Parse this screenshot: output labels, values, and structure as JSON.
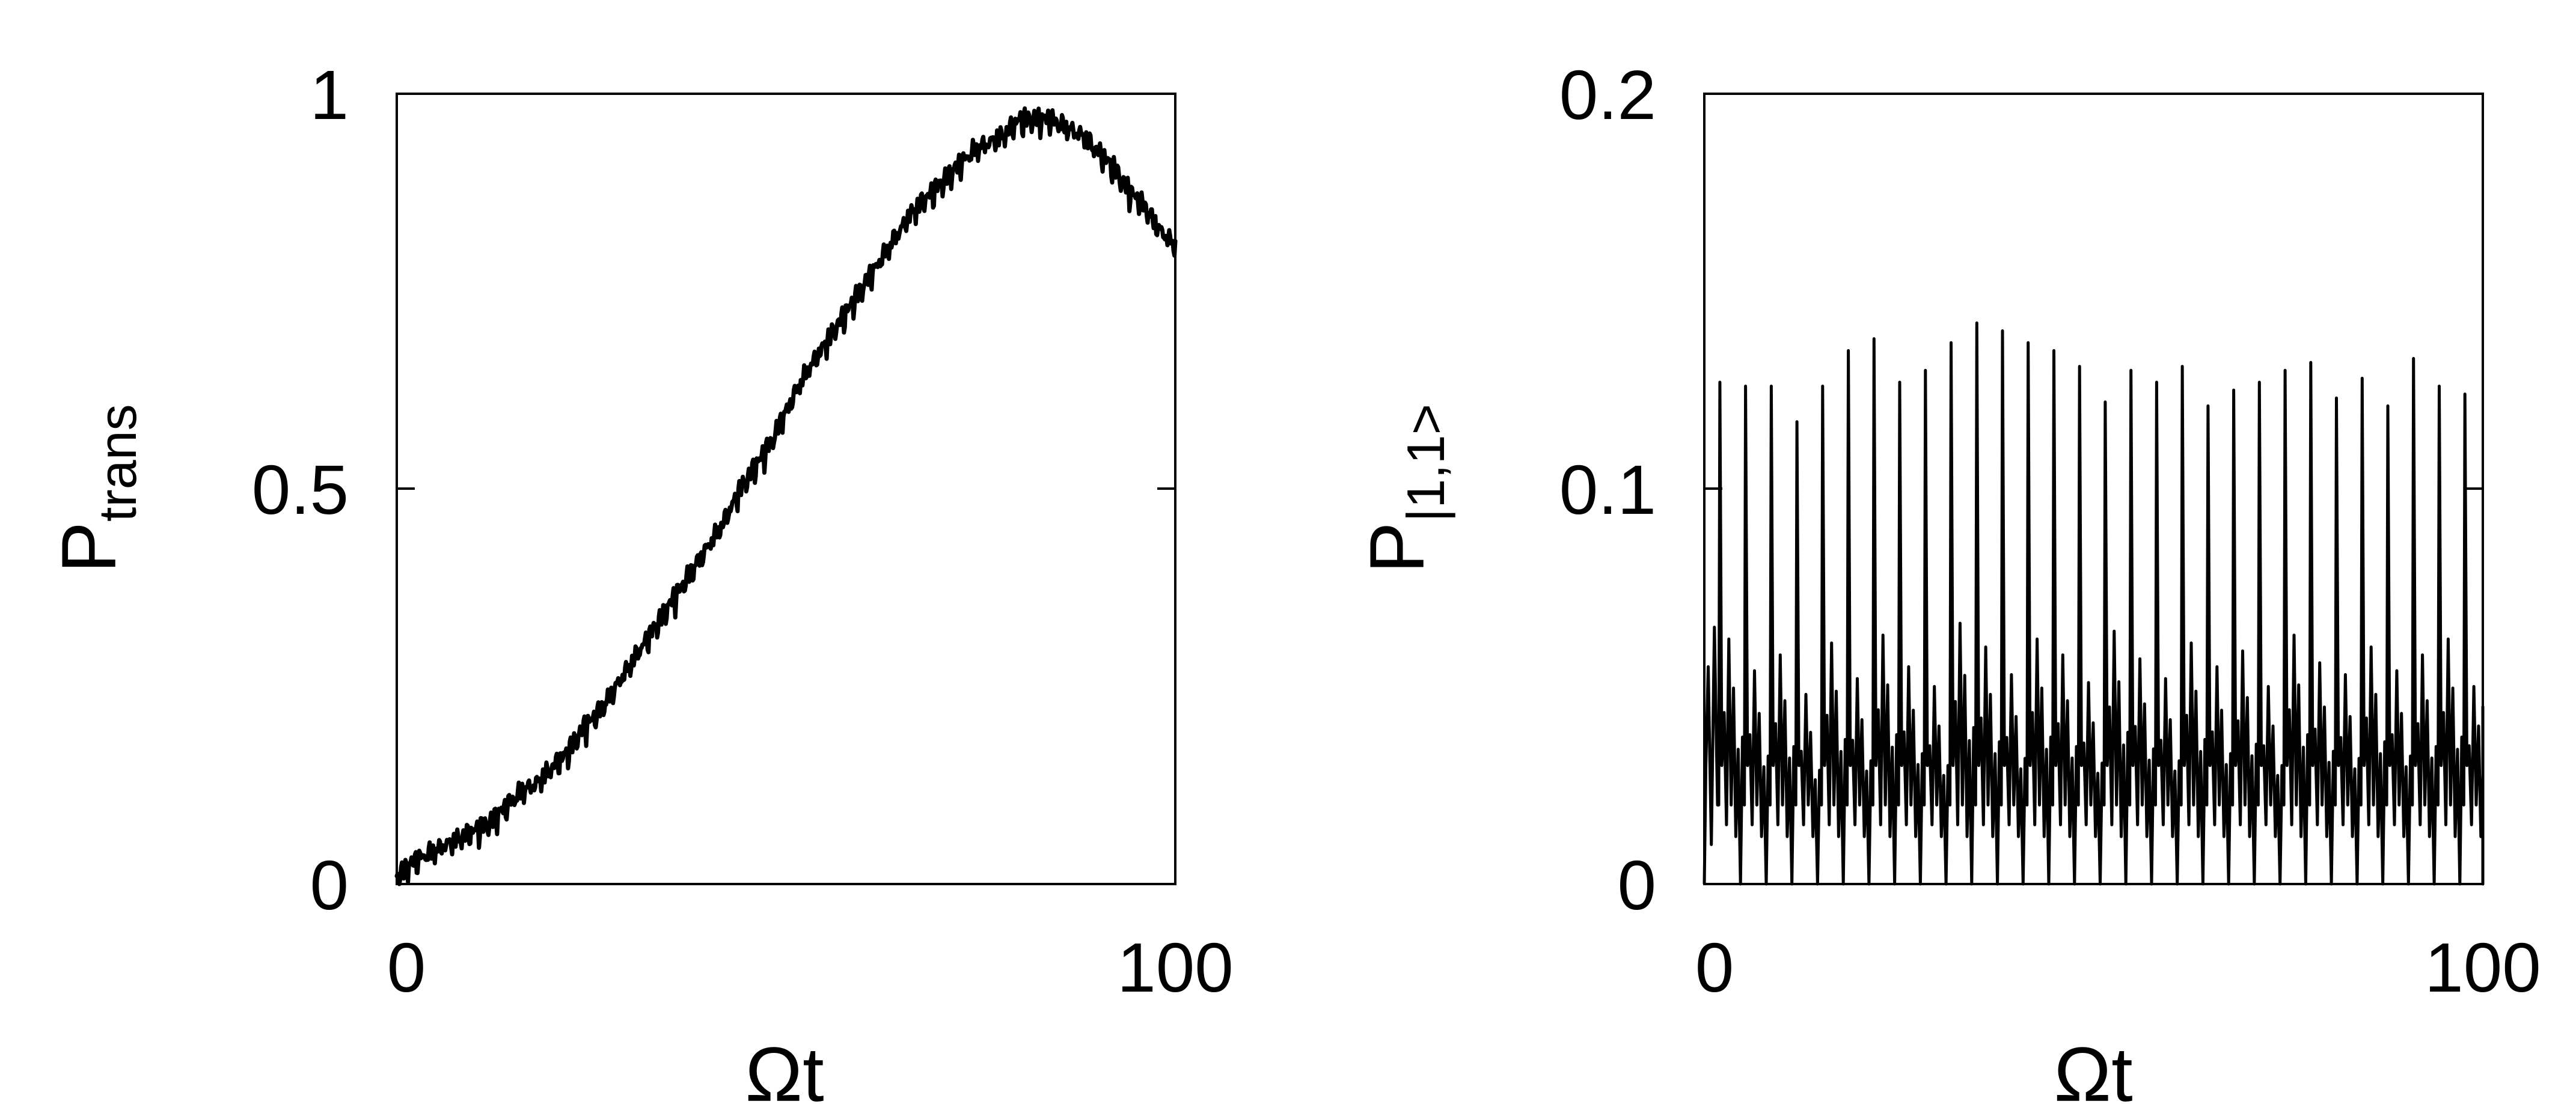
{
  "chart_data": [
    {
      "type": "line",
      "title": "",
      "xlabel": "Ωt",
      "ylabel": {
        "main": "P",
        "subscript": "trans"
      },
      "xlim": [
        0,
        100
      ],
      "ylim": [
        0,
        1
      ],
      "x_ticks": [
        {
          "value": 0,
          "label": "0"
        },
        {
          "value": 100,
          "label": "100"
        }
      ],
      "y_ticks": [
        {
          "value": 0,
          "label": "0"
        },
        {
          "value": 0.5,
          "label": "0.5"
        },
        {
          "value": 1,
          "label": "1"
        }
      ],
      "grid": false,
      "legend": "none",
      "line_color": "#000000",
      "series": [
        {
          "x": [
            0,
            2,
            4,
            6,
            8,
            10,
            12,
            14,
            16,
            18,
            20,
            22,
            24,
            26,
            28,
            30,
            32,
            34,
            36,
            38,
            40,
            42,
            44,
            46,
            48,
            50,
            52,
            54,
            56,
            58,
            60,
            62,
            64,
            66,
            68,
            70,
            72,
            74,
            76,
            78,
            80,
            82,
            84,
            86,
            88,
            90,
            92,
            94,
            96,
            98,
            100
          ],
          "y": [
            0.01,
            0.03,
            0.04,
            0.05,
            0.06,
            0.07,
            0.08,
            0.1,
            0.12,
            0.13,
            0.15,
            0.17,
            0.2,
            0.22,
            0.25,
            0.28,
            0.31,
            0.34,
            0.37,
            0.4,
            0.43,
            0.46,
            0.5,
            0.53,
            0.56,
            0.6,
            0.64,
            0.67,
            0.7,
            0.73,
            0.76,
            0.79,
            0.82,
            0.85,
            0.87,
            0.89,
            0.91,
            0.93,
            0.94,
            0.95,
            0.97,
            0.97,
            0.97,
            0.96,
            0.95,
            0.93,
            0.91,
            0.88,
            0.86,
            0.83,
            0.81
          ]
        }
      ]
    },
    {
      "type": "line",
      "title": "",
      "xlabel": "Ωt",
      "ylabel": {
        "main": "P",
        "subscript": "|1,1>"
      },
      "xlim": [
        0,
        100
      ],
      "ylim": [
        0,
        0.2
      ],
      "x_ticks": [
        {
          "value": 0,
          "label": "0"
        },
        {
          "value": 100,
          "label": "100"
        }
      ],
      "y_ticks": [
        {
          "value": 0,
          "label": "0"
        },
        {
          "value": 0.1,
          "label": "0.1"
        },
        {
          "value": 0.2,
          "label": "0.2"
        }
      ],
      "grid": false,
      "legend": "none",
      "line_color": "#000000",
      "series": [
        {
          "name": "",
          "major_peaks_x": [
            2.0,
            5.3,
            8.6,
            11.9,
            15.2,
            18.5,
            21.8,
            25.1,
            28.4,
            31.7,
            35.0,
            38.3,
            41.6,
            44.9,
            48.2,
            51.5,
            54.8,
            58.1,
            61.4,
            64.7,
            68.0,
            71.3,
            74.6,
            77.9,
            81.2,
            84.5,
            87.8,
            91.1,
            94.4,
            97.7
          ],
          "major_peaks_y": [
            0.127,
            0.126,
            0.126,
            0.117,
            0.126,
            0.135,
            0.138,
            0.127,
            0.13,
            0.137,
            0.142,
            0.14,
            0.137,
            0.135,
            0.131,
            0.122,
            0.13,
            0.127,
            0.131,
            0.121,
            0.125,
            0.127,
            0.13,
            0.132,
            0.123,
            0.128,
            0.121,
            0.133,
            0.126,
            0.124
          ],
          "minor_peaks_y": [
            0.062,
            0.054,
            0.058,
            0.048,
            0.061,
            0.052,
            0.063,
            0.055,
            0.05,
            0.066,
            0.06,
            0.053,
            0.062,
            0.058,
            0.051,
            0.064,
            0.057,
            0.052,
            0.061,
            0.055,
            0.059,
            0.05,
            0.063,
            0.056,
            0.053,
            0.06,
            0.054,
            0.058,
            0.062,
            0.05
          ],
          "baseline_min": 0.0
        }
      ]
    }
  ]
}
